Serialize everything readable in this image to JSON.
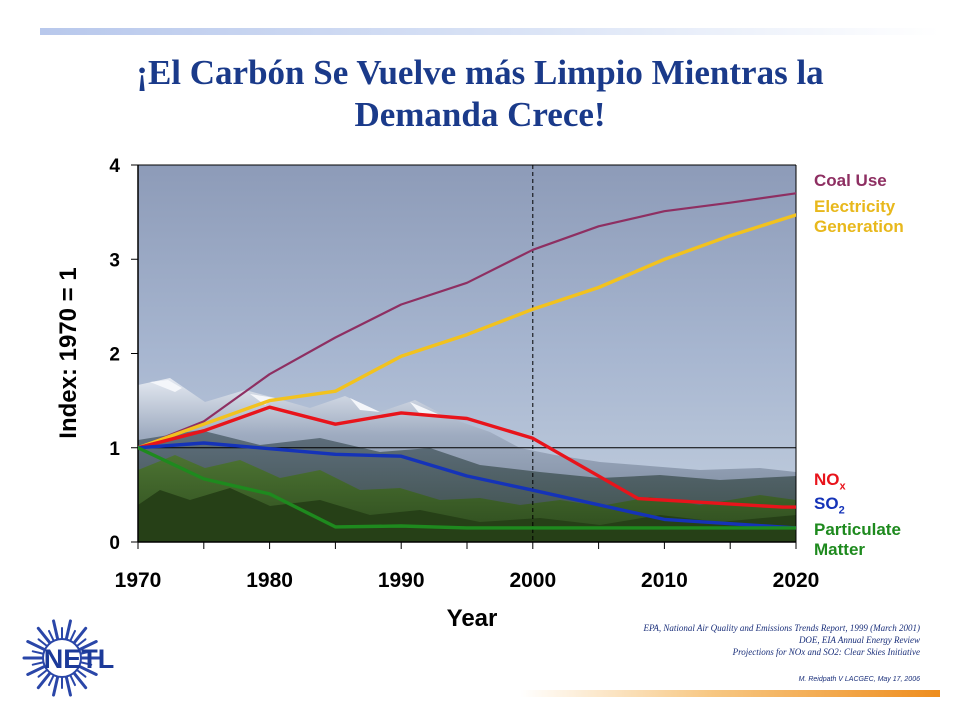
{
  "slide": {
    "title_line1": "¡El Carbón Se Vuelve más Limpio Mientras la",
    "title_line2": "Demanda Crece!",
    "sources": [
      "EPA, National Air Quality and Emissions Trends Report, 1999 (March 2001)",
      "DOE, EIA Annual Energy Review",
      "Projections for NOx and SO2: Clear Skies Initiative"
    ],
    "credit": "M. Reidpath V LACGEC, May 17, 2006",
    "logo_text": "NETL",
    "logo_icon": "netl-sunburst-logo",
    "background_image": "mountain-landscape-icon",
    "accent_bar_top": "#b8c8ec",
    "accent_bar_bottom": "#ee8d1e"
  },
  "legend": {
    "coal_use": "Coal Use",
    "electricity_line1": "Electricity",
    "electricity_line2": "Generation",
    "nox_main": "NO",
    "nox_sub": "x",
    "so2_main": "SO",
    "so2_sub": "2",
    "pm_line1": "Particulate",
    "pm_line2": "Matter"
  },
  "chart_data": {
    "type": "line",
    "title": "¡El Carbón Se Vuelve más Limpio Mientras la Demanda Crece!",
    "xlabel": "Year",
    "ylabel": "Index:  1970 = 1",
    "xlim": [
      1970,
      2020
    ],
    "ylim": [
      0,
      4
    ],
    "x_ticks": [
      "1970",
      "1980",
      "1990",
      "2000",
      "2010",
      "2020"
    ],
    "y_ticks": [
      "0",
      "1",
      "2",
      "3",
      "4"
    ],
    "reference_lines": {
      "horizontal_y": 1,
      "vertical_x_dashed": 2000
    },
    "grid": false,
    "legend_position": "right",
    "series": [
      {
        "name": "Coal Use",
        "color": "#8e2f62",
        "x": [
          1970,
          1975,
          1980,
          1985,
          1990,
          1995,
          2000,
          2005,
          2010,
          2015,
          2020
        ],
        "y": [
          1.0,
          1.28,
          1.78,
          2.17,
          2.52,
          2.75,
          3.1,
          3.35,
          3.51,
          3.6,
          3.7
        ]
      },
      {
        "name": "Electricity Generation",
        "color": "#f2c21e",
        "x": [
          1970,
          1975,
          1980,
          1985,
          1990,
          1995,
          2000,
          2005,
          2010,
          2015,
          2020
        ],
        "y": [
          1.0,
          1.25,
          1.5,
          1.6,
          1.97,
          2.2,
          2.47,
          2.7,
          3.0,
          3.25,
          3.47
        ]
      },
      {
        "name": "NOx",
        "color": "#e8141b",
        "x": [
          1970,
          1975,
          1980,
          1985,
          1990,
          1995,
          2000,
          2008,
          2019,
          2020
        ],
        "y": [
          1.0,
          1.18,
          1.43,
          1.25,
          1.37,
          1.31,
          1.1,
          0.46,
          0.37,
          0.37
        ]
      },
      {
        "name": "SO2",
        "color": "#1533b8",
        "x": [
          1970,
          1975,
          1980,
          1985,
          1990,
          1995,
          2000,
          2010,
          2020
        ],
        "y": [
          1.0,
          1.05,
          0.99,
          0.93,
          0.91,
          0.7,
          0.55,
          0.24,
          0.15
        ]
      },
      {
        "name": "Particulate Matter",
        "color": "#1e8a1e",
        "x": [
          1970,
          1975,
          1980,
          1985,
          1990,
          1995,
          2000,
          2010,
          2020
        ],
        "y": [
          1.0,
          0.67,
          0.51,
          0.16,
          0.17,
          0.15,
          0.15,
          0.15,
          0.15
        ]
      }
    ]
  }
}
